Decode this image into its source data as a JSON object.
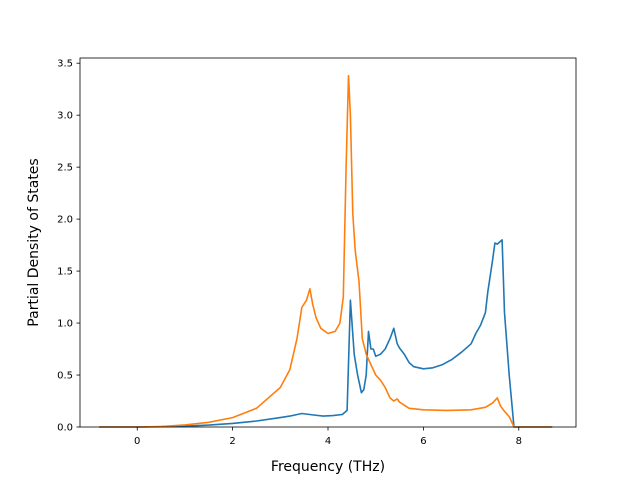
{
  "chart_data": {
    "type": "line",
    "title": "",
    "xlabel": "Frequency (THz)",
    "ylabel": "Partial Density of States",
    "xlim": [
      -1.2,
      9.2
    ],
    "ylim": [
      0,
      3.55
    ],
    "xticks": [
      0,
      2,
      4,
      6,
      8
    ],
    "xtick_labels": [
      "0",
      "2",
      "4",
      "6",
      "8"
    ],
    "yticks": [
      0.0,
      0.5,
      1.0,
      1.5,
      2.0,
      2.5,
      3.0,
      3.5
    ],
    "ytick_labels": [
      "0.0",
      "0.5",
      "1.0",
      "1.5",
      "2.0",
      "2.5",
      "3.0",
      "3.5"
    ],
    "grid": false,
    "legend": false,
    "series": [
      {
        "color": "#1f77b4",
        "x": [
          -0.8,
          0.0,
          0.5,
          1.0,
          1.5,
          2.0,
          2.5,
          3.0,
          3.2,
          3.45,
          3.7,
          3.9,
          4.1,
          4.3,
          4.4,
          4.47,
          4.55,
          4.62,
          4.7,
          4.75,
          4.8,
          4.85,
          4.9,
          4.95,
          5.0,
          5.1,
          5.2,
          5.3,
          5.38,
          5.45,
          5.5,
          5.6,
          5.7,
          5.8,
          6.0,
          6.2,
          6.4,
          6.6,
          6.8,
          7.0,
          7.1,
          7.2,
          7.3,
          7.35,
          7.45,
          7.5,
          7.55,
          7.6,
          7.65,
          7.7,
          7.8,
          7.9,
          8.3,
          8.7
        ],
        "y": [
          0.0,
          0.0,
          0.003,
          0.008,
          0.018,
          0.035,
          0.058,
          0.09,
          0.105,
          0.13,
          0.115,
          0.105,
          0.11,
          0.12,
          0.16,
          1.22,
          0.7,
          0.5,
          0.33,
          0.36,
          0.5,
          0.92,
          0.75,
          0.75,
          0.68,
          0.7,
          0.75,
          0.85,
          0.95,
          0.8,
          0.76,
          0.7,
          0.62,
          0.58,
          0.56,
          0.57,
          0.6,
          0.65,
          0.72,
          0.8,
          0.9,
          0.98,
          1.1,
          1.3,
          1.6,
          1.77,
          1.76,
          1.78,
          1.8,
          1.1,
          0.5,
          0.0,
          0.0,
          0.0
        ]
      },
      {
        "color": "#ff7f0e",
        "x": [
          -0.8,
          0.0,
          0.5,
          1.0,
          1.5,
          2.0,
          2.5,
          3.0,
          3.2,
          3.35,
          3.45,
          3.55,
          3.62,
          3.68,
          3.75,
          3.85,
          4.0,
          4.15,
          4.25,
          4.32,
          4.38,
          4.43,
          4.47,
          4.52,
          4.57,
          4.65,
          4.72,
          4.8,
          4.9,
          5.0,
          5.1,
          5.2,
          5.3,
          5.38,
          5.45,
          5.5,
          5.6,
          5.7,
          6.0,
          6.5,
          7.0,
          7.3,
          7.45,
          7.55,
          7.62,
          7.7,
          7.8,
          7.9,
          8.3,
          8.7
        ],
        "y": [
          0.0,
          0.0,
          0.005,
          0.02,
          0.045,
          0.09,
          0.18,
          0.38,
          0.55,
          0.85,
          1.15,
          1.22,
          1.33,
          1.18,
          1.05,
          0.95,
          0.9,
          0.92,
          1.0,
          1.25,
          2.5,
          3.38,
          3.0,
          2.05,
          1.7,
          1.4,
          0.85,
          0.7,
          0.6,
          0.5,
          0.45,
          0.38,
          0.28,
          0.25,
          0.27,
          0.24,
          0.21,
          0.18,
          0.165,
          0.16,
          0.165,
          0.19,
          0.23,
          0.28,
          0.2,
          0.15,
          0.1,
          0.0,
          0.0,
          0.0
        ]
      }
    ]
  }
}
